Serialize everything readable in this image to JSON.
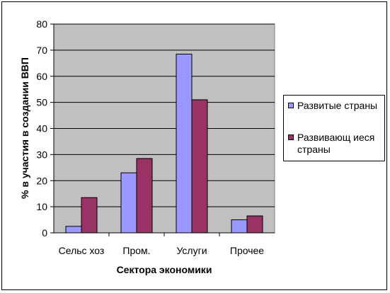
{
  "chart_data": {
    "type": "bar",
    "title": "",
    "xlabel": "Сектора экономики",
    "ylabel": "% в участия в создании ВВП",
    "categories": [
      "Сельс хоз",
      "Пром.",
      "Услуги",
      "Прочее"
    ],
    "ylim": [
      0,
      80
    ],
    "yticks": [
      0,
      10,
      20,
      30,
      40,
      50,
      60,
      70,
      80
    ],
    "grid": true,
    "legend_position": "right",
    "series": [
      {
        "name": "Развитые страны",
        "color": "#9999ff",
        "values": [
          2.5,
          23,
          68.5,
          5
        ]
      },
      {
        "name": "Развивающ иеся страны",
        "color": "#993366",
        "values": [
          13.5,
          28.5,
          51,
          6.5
        ]
      }
    ]
  },
  "colors": {
    "plot_background": "#c0c0c0",
    "gridline": "#000000"
  }
}
